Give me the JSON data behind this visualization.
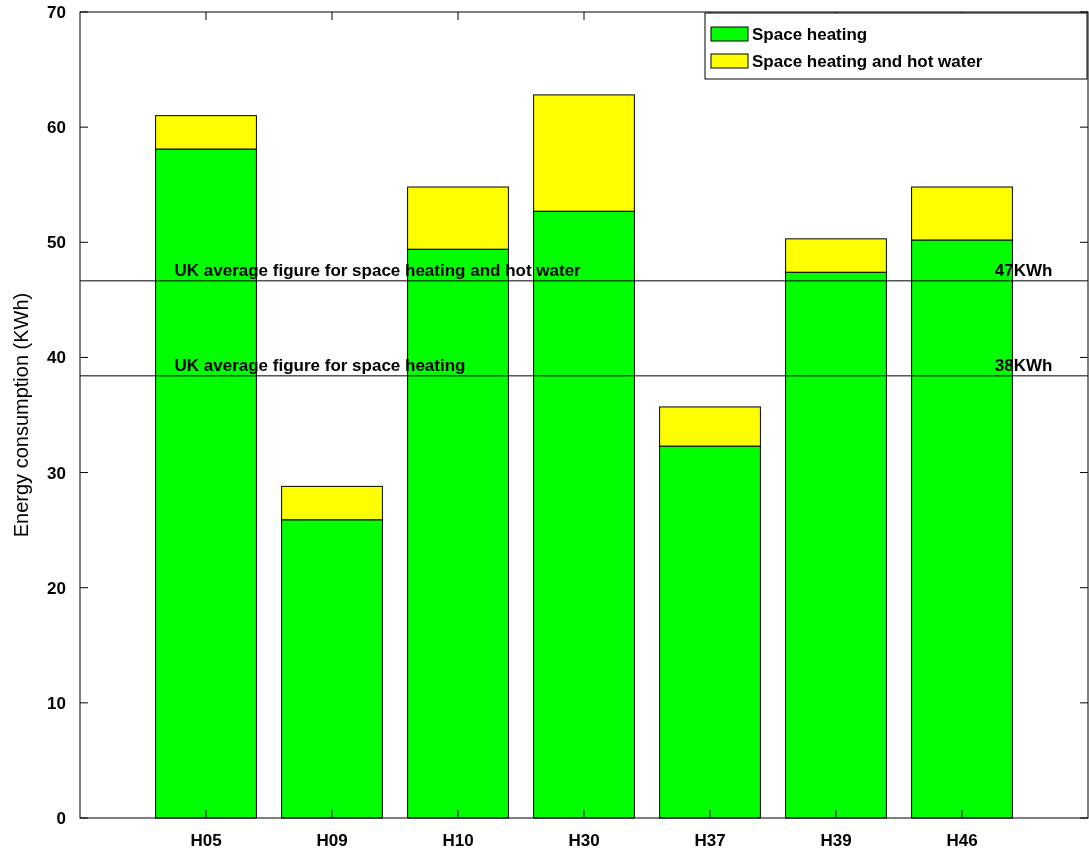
{
  "chart_data": {
    "type": "bar",
    "stacked": true,
    "categories": [
      "H05",
      "H09",
      "H10",
      "H30",
      "H37",
      "H39",
      "H46"
    ],
    "series": [
      {
        "name": "Space heating",
        "color": "#00ff00",
        "values": [
          58.1,
          25.9,
          49.4,
          52.7,
          32.3,
          47.4,
          50.2
        ]
      },
      {
        "name": "Space heating and hot water",
        "color": "#ffff00",
        "values": [
          2.9,
          2.9,
          5.4,
          10.1,
          3.4,
          2.9,
          4.6
        ]
      }
    ],
    "ylabel": "Energy consumption (KWh)",
    "ylim": [
      0,
      70
    ],
    "yticks": [
      0,
      10,
      20,
      30,
      40,
      50,
      60,
      70
    ],
    "ref_lines": [
      {
        "axis": "y",
        "value": 46.65,
        "label": "UK average figure for space heating and hot water",
        "color": "#000000"
      },
      {
        "axis": "y",
        "value": 38.4,
        "label": "UK average figure for space heating",
        "color": "#000000"
      }
    ],
    "annotations": [
      {
        "text": "47KWh",
        "x": "H46",
        "y": 46.65
      },
      {
        "text": "38KWh",
        "x": "H46",
        "y": 38.4
      }
    ],
    "legend": "top right",
    "grid": false
  }
}
